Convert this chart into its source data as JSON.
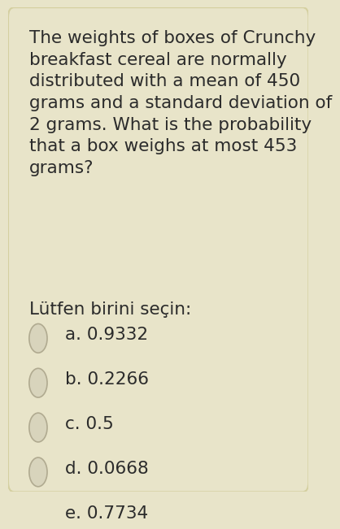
{
  "background_color": "#e8e4c9",
  "border_color": "#d4cfa0",
  "question_lines": "The weights of boxes of Crunchy\nbreakfast cereal are normally\ndistributed with a mean of 450\ngrams and a standard deviation of\n2 grams. What is the probability\nthat a box weighs at most 453\ngrams?",
  "prompt_text": "Lütfen birini seçin:",
  "options": [
    "a. 0.9332",
    "b. 0.2266",
    "c. 0.5",
    "d. 0.0668",
    "e. 0.7734"
  ],
  "text_color": "#2b2b2b",
  "radio_fill": "#d8d4bc",
  "radio_border": "#b0aa90",
  "font_size_question": 15.5,
  "font_size_prompt": 15.5,
  "font_size_options": 15.5
}
